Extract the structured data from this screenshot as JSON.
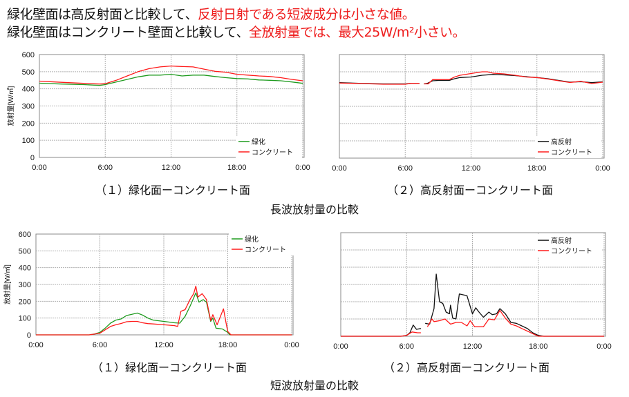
{
  "headline": {
    "line1": [
      {
        "text": "緑化壁面は高反射面と比較して、",
        "color": "black"
      },
      {
        "text": "反射日射である短波成分は小さな値。",
        "color": "red"
      }
    ],
    "line2": [
      {
        "text": "緑化壁面はコンクリート壁面と比較して、",
        "color": "black"
      },
      {
        "text": "全放射量では、最大25W/m²小さい。",
        "color": "red"
      }
    ]
  },
  "captions": {
    "long_left": "（１）緑化面ーコンクリート面",
    "long_right": "（２）高反射面ーコンクリート面",
    "long_group": "長波放射量の比較",
    "short_left": "（１）緑化面ーコンクリート面",
    "short_right": "（２）高反射面ーコンクリート面",
    "short_group": "短波放射量の比較"
  },
  "colors": {
    "green": "#1e9a1e",
    "red": "#ff1a1a",
    "black": "#111111",
    "grid": "#b0b0b0"
  },
  "chart_data": [
    {
      "type": "line",
      "ylabel": "放射量[W/㎡]",
      "ylim": [
        0,
        600
      ],
      "yticks": [
        "0",
        "100",
        "200",
        "300",
        "400",
        "500",
        "600"
      ],
      "xlim": [
        0,
        24
      ],
      "xticks": [
        "0:00",
        "6:00",
        "12:00",
        "18:00",
        "0:00"
      ],
      "grid": true,
      "legend": "bottom-right",
      "series": [
        {
          "name": "緑化",
          "color": "#1e9a1e",
          "x": [
            0,
            2,
            4,
            5.5,
            6,
            7,
            8,
            9,
            10,
            11,
            12,
            13,
            14,
            15,
            16,
            17,
            18,
            19,
            20,
            21,
            22,
            23,
            24
          ],
          "y": [
            433,
            428,
            425,
            420,
            425,
            440,
            455,
            470,
            480,
            480,
            485,
            475,
            480,
            480,
            472,
            465,
            460,
            458,
            452,
            450,
            447,
            440,
            432
          ]
        },
        {
          "name": "コンクリート",
          "color": "#ff1a1a",
          "x": [
            0,
            2,
            4,
            5.5,
            6,
            7,
            8,
            9,
            10,
            11,
            12,
            13,
            14,
            15,
            16,
            17,
            18,
            19,
            20,
            21,
            22,
            23,
            24
          ],
          "y": [
            445,
            438,
            432,
            428,
            430,
            450,
            475,
            500,
            518,
            528,
            533,
            530,
            528,
            515,
            502,
            497,
            485,
            480,
            475,
            472,
            465,
            455,
            447
          ]
        }
      ]
    },
    {
      "type": "line",
      "ylim": [
        0,
        600
      ],
      "xlim": [
        0,
        24
      ],
      "xticks": [
        "0:00",
        "6:00",
        "12:00",
        "18:00",
        "0:00"
      ],
      "grid": true,
      "legend": "bottom-right",
      "series": [
        {
          "name": "高反射",
          "color": "#111111",
          "x": [
            0,
            2,
            4,
            6,
            6.5,
            7.3,
            7.5,
            7.7,
            8,
            8.5,
            9,
            10,
            10.5,
            11,
            12,
            13,
            14,
            15,
            16,
            17,
            18,
            19,
            20,
            21,
            22,
            23,
            24
          ],
          "y": [
            437,
            433,
            430,
            430,
            433,
            433,
            null,
            430,
            433,
            448,
            450,
            450,
            460,
            467,
            470,
            480,
            485,
            482,
            478,
            472,
            467,
            460,
            450,
            440,
            443,
            437,
            442
          ]
        },
        {
          "name": "コンクリート",
          "color": "#ff1a1a",
          "x": [
            0,
            2,
            4,
            6,
            6.5,
            7.3,
            7.5,
            7.7,
            8.1,
            8.5,
            9,
            10,
            10.5,
            11,
            12,
            13,
            13.5,
            14,
            15,
            16,
            17,
            18,
            19,
            20,
            21,
            22,
            23,
            24
          ],
          "y": [
            435,
            432,
            428,
            428,
            433,
            433,
            null,
            430,
            430,
            455,
            455,
            455,
            470,
            480,
            490,
            500,
            500,
            492,
            488,
            480,
            470,
            467,
            458,
            448,
            438,
            445,
            432,
            440
          ]
        }
      ]
    },
    {
      "type": "line",
      "ylabel": "放射量[W/㎡]",
      "ylim": [
        0,
        600
      ],
      "yticks": [
        "0",
        "100",
        "200",
        "300",
        "400",
        "500",
        "600"
      ],
      "xlim": [
        0,
        24
      ],
      "xticks": [
        "0:00",
        "6:00",
        "12:00",
        "18:00",
        "0:00"
      ],
      "grid": true,
      "legend": "top-right",
      "series": [
        {
          "name": "緑化",
          "color": "#1e9a1e",
          "x": [
            0,
            5,
            5.5,
            6,
            6.5,
            7,
            7.5,
            8,
            8.5,
            9,
            9.5,
            10,
            10.5,
            11,
            12,
            13,
            13.5,
            14,
            14.5,
            15,
            15.3,
            15.7,
            16,
            16.4,
            16.6,
            16.9,
            17.5,
            18,
            18.2,
            24
          ],
          "y": [
            0,
            0,
            5,
            15,
            40,
            70,
            88,
            95,
            115,
            122,
            130,
            118,
            100,
            88,
            80,
            72,
            70,
            110,
            175,
            250,
            195,
            210,
            195,
            80,
            100,
            40,
            35,
            15,
            0,
            0
          ]
        },
        {
          "name": "コンクリート",
          "color": "#ff1a1a",
          "x": [
            0,
            5,
            6,
            6.5,
            7,
            7.5,
            8,
            8.5,
            9,
            9.5,
            10,
            10.5,
            11,
            12,
            13,
            13.3,
            13.6,
            14,
            14.5,
            14.8,
            15,
            15.2,
            15.6,
            16,
            16.4,
            16.6,
            17,
            17.6,
            17.9,
            18,
            18.3,
            24
          ],
          "y": [
            0,
            0,
            10,
            30,
            50,
            60,
            68,
            78,
            80,
            80,
            72,
            67,
            65,
            60,
            55,
            50,
            140,
            150,
            215,
            245,
            290,
            225,
            245,
            210,
            85,
            120,
            60,
            155,
            50,
            20,
            0,
            0
          ]
        }
      ]
    },
    {
      "type": "line",
      "ylim": [
        0,
        600
      ],
      "xlim": [
        0,
        24
      ],
      "xticks": [
        "0:00",
        "6:00",
        "12:00",
        "18:00",
        "0:00"
      ],
      "grid": true,
      "legend": "top-right",
      "series": [
        {
          "name": "高反射",
          "color": "#111111",
          "x": [
            0,
            5.5,
            6,
            6.3,
            6.6,
            6.9,
            7.3,
            7.5,
            7.7,
            8.1,
            8.5,
            8.7,
            9,
            9.3,
            9.6,
            9.9,
            10,
            10.2,
            10.5,
            10.8,
            11.5,
            12,
            12.3,
            12.6,
            13,
            13.5,
            13.8,
            14.2,
            14.5,
            15,
            15.5,
            16,
            16.5,
            17,
            17.5,
            18,
            18.5,
            24
          ],
          "y": [
            0,
            0,
            5,
            20,
            65,
            40,
            45,
            null,
            75,
            70,
            160,
            360,
            200,
            190,
            140,
            130,
            180,
            105,
            100,
            245,
            235,
            130,
            165,
            140,
            110,
            140,
            125,
            130,
            160,
            130,
            80,
            75,
            60,
            45,
            20,
            5,
            0,
            0
          ]
        },
        {
          "name": "コンクリート",
          "color": "#ff1a1a",
          "x": [
            0,
            5.5,
            6,
            6.5,
            7,
            7.3,
            7.5,
            7.9,
            8.3,
            8.5,
            9,
            9.5,
            10,
            10.5,
            11,
            11.5,
            11.8,
            12.2,
            13,
            13.5,
            14,
            14.5,
            15,
            15.5,
            16,
            16.5,
            17,
            17.5,
            18,
            24
          ],
          "y": [
            0,
            0,
            5,
            25,
            20,
            20,
            null,
            55,
            100,
            85,
            90,
            100,
            70,
            80,
            80,
            60,
            90,
            55,
            55,
            100,
            95,
            150,
            105,
            70,
            60,
            45,
            30,
            15,
            0,
            0
          ]
        }
      ]
    }
  ]
}
